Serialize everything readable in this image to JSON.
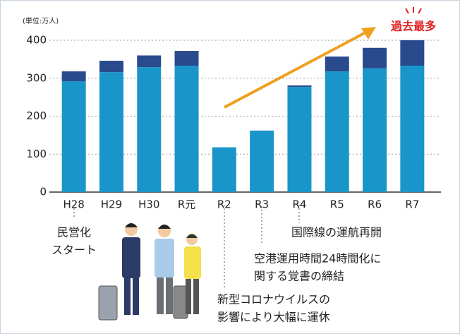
{
  "chart_data": {
    "type": "stacked_bar",
    "unit_label": "(単位:万人)",
    "categories": [
      "H28",
      "H29",
      "H30",
      "R元",
      "R2",
      "R3",
      "R4",
      "R5",
      "R6",
      "R7"
    ],
    "series": [
      {
        "color": "#1a95c9",
        "values": [
          292,
          316,
          329,
          333,
          118,
          162,
          277,
          318,
          326,
          333
        ]
      },
      {
        "color": "#2a4a8e",
        "values": [
          26,
          30,
          31,
          39,
          0,
          0,
          4,
          39,
          54,
          67
        ]
      }
    ],
    "ylim": [
      0,
      400
    ],
    "yticks": [
      0,
      100,
      200,
      300,
      400
    ],
    "grid": true,
    "highlight": "過去最多",
    "annotations": [
      {
        "lines": [
          "民営化",
          "スタート"
        ]
      },
      {
        "lines": [
          "新型コロナウイルスの",
          "影響により大幅に運休"
        ]
      },
      {
        "lines": [
          "空港運用時間24時間化に",
          "関する覚書の締結"
        ]
      },
      {
        "lines": [
          "国際線の運航再開"
        ]
      }
    ]
  }
}
